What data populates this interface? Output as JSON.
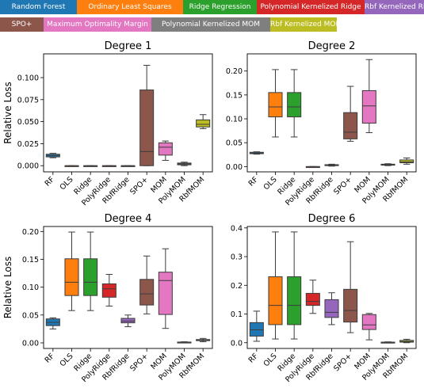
{
  "legend": [
    {
      "label": "Random Forest",
      "color": "#1f77b4"
    },
    {
      "label": "Ordinary Least Squares",
      "color": "#ff7f0e"
    },
    {
      "label": "Ridge Regression",
      "color": "#2ca02c"
    },
    {
      "label": "Polynomial Kernelized Ridge",
      "color": "#d62728"
    },
    {
      "label": "Rbf Kernelized Ridge",
      "color": "#9467bd"
    },
    {
      "label": "SPO+",
      "color": "#8c564b"
    },
    {
      "label": "Maximum Optimality Margin",
      "color": "#e377c2"
    },
    {
      "label": "Polynomial Kernelized MOM",
      "color": "#7f7f7f"
    },
    {
      "label": "Rbf Kernelized MOM",
      "color": "#bcbd22"
    }
  ],
  "chart_data": [
    {
      "type": "box",
      "title": "Degree 1",
      "ylabel": "Relative Loss",
      "ylim": [
        -0.007,
        0.127
      ],
      "yticks": [
        "0.000",
        "0.025",
        "0.050",
        "0.075",
        "0.100"
      ],
      "ytick_values": [
        0,
        0.025,
        0.05,
        0.075,
        0.1
      ],
      "categories": [
        "RF",
        "OLS",
        "Ridge",
        "PolyRidge",
        "RbfRidge",
        "SPO+",
        "MOM",
        "PolyMOM",
        "RbfMOM"
      ],
      "boxes": [
        {
          "whislo": 0.009,
          "q1": 0.01,
          "med": 0.0115,
          "q3": 0.013,
          "whishi": 0.014
        },
        {
          "whislo": 0.0,
          "q1": 0.0,
          "med": 0.0,
          "q3": 0.0,
          "whishi": 0.0
        },
        {
          "whislo": 0.0,
          "q1": 0.0,
          "med": 0.0,
          "q3": 0.0,
          "whishi": 0.0
        },
        {
          "whislo": 0.0,
          "q1": 0.0,
          "med": 0.0,
          "q3": 0.0,
          "whishi": 0.0
        },
        {
          "whislo": 0.0,
          "q1": 0.0,
          "med": 0.0,
          "q3": 0.0,
          "whishi": 0.0
        },
        {
          "whislo": 0.0,
          "q1": 0.0,
          "med": 0.016,
          "q3": 0.086,
          "whishi": 0.114
        },
        {
          "whislo": 0.006,
          "q1": 0.012,
          "med": 0.021,
          "q3": 0.026,
          "whishi": 0.028
        },
        {
          "whislo": 0.0,
          "q1": 0.001,
          "med": 0.002,
          "q3": 0.003,
          "whishi": 0.004
        },
        {
          "whislo": 0.042,
          "q1": 0.044,
          "med": 0.047,
          "q3": 0.052,
          "whishi": 0.058
        }
      ]
    },
    {
      "type": "box",
      "title": "Degree 2",
      "ylabel": "",
      "ylim": [
        -0.011,
        0.236
      ],
      "yticks": [
        "0.00",
        "0.05",
        "0.10",
        "0.15",
        "0.20"
      ],
      "ytick_values": [
        0,
        0.05,
        0.1,
        0.15,
        0.2
      ],
      "categories": [
        "RF",
        "OLS",
        "Ridge",
        "PolyRidge",
        "RbfRidge",
        "SPO+",
        "MOM",
        "PolyMOM",
        "RbfMOM"
      ],
      "boxes": [
        {
          "whislo": 0.026,
          "q1": 0.027,
          "med": 0.028,
          "q3": 0.03,
          "whishi": 0.031
        },
        {
          "whislo": 0.062,
          "q1": 0.104,
          "med": 0.125,
          "q3": 0.155,
          "whishi": 0.203
        },
        {
          "whislo": 0.062,
          "q1": 0.104,
          "med": 0.125,
          "q3": 0.155,
          "whishi": 0.203
        },
        {
          "whislo": 0.0,
          "q1": 0.0,
          "med": 0.0,
          "q3": 0.0,
          "whishi": 0.0
        },
        {
          "whislo": 0.001,
          "q1": 0.002,
          "med": 0.003,
          "q3": 0.004,
          "whishi": 0.005
        },
        {
          "whislo": 0.053,
          "q1": 0.058,
          "med": 0.072,
          "q3": 0.113,
          "whishi": 0.168
        },
        {
          "whislo": 0.071,
          "q1": 0.091,
          "med": 0.127,
          "q3": 0.159,
          "whishi": 0.224
        },
        {
          "whislo": 0.002,
          "q1": 0.003,
          "med": 0.004,
          "q3": 0.005,
          "whishi": 0.006
        },
        {
          "whislo": 0.005,
          "q1": 0.008,
          "med": 0.01,
          "q3": 0.014,
          "whishi": 0.018
        }
      ]
    },
    {
      "type": "box",
      "title": "Degree 4",
      "ylabel": "Relative Loss",
      "ylim": [
        -0.01,
        0.209
      ],
      "yticks": [
        "0.00",
        "0.05",
        "0.10",
        "0.15",
        "0.20"
      ],
      "ytick_values": [
        0,
        0.05,
        0.1,
        0.15,
        0.2
      ],
      "categories": [
        "RF",
        "OLS",
        "Ridge",
        "PolyRidge",
        "RbfRidge",
        "SPO+",
        "MOM",
        "PolyMOM",
        "RbfMOM"
      ],
      "boxes": [
        {
          "whislo": 0.025,
          "q1": 0.031,
          "med": 0.037,
          "q3": 0.043,
          "whishi": 0.045
        },
        {
          "whislo": 0.058,
          "q1": 0.085,
          "med": 0.109,
          "q3": 0.151,
          "whishi": 0.199
        },
        {
          "whislo": 0.058,
          "q1": 0.085,
          "med": 0.109,
          "q3": 0.151,
          "whishi": 0.199
        },
        {
          "whislo": 0.066,
          "q1": 0.082,
          "med": 0.097,
          "q3": 0.106,
          "whishi": 0.123
        },
        {
          "whislo": 0.029,
          "q1": 0.036,
          "med": 0.039,
          "q3": 0.044,
          "whishi": 0.05
        },
        {
          "whislo": 0.052,
          "q1": 0.068,
          "med": 0.088,
          "q3": 0.114,
          "whishi": 0.156
        },
        {
          "whislo": 0.026,
          "q1": 0.051,
          "med": 0.112,
          "q3": 0.127,
          "whishi": 0.169
        },
        {
          "whislo": 0.0,
          "q1": 0.0005,
          "med": 0.001,
          "q3": 0.0015,
          "whishi": 0.002
        },
        {
          "whislo": 0.002,
          "q1": 0.004,
          "med": 0.005,
          "q3": 0.006,
          "whishi": 0.008
        }
      ]
    },
    {
      "type": "box",
      "title": "Degree 6",
      "ylabel": "",
      "ylim": [
        -0.02,
        0.405
      ],
      "yticks": [
        "0.0",
        "0.1",
        "0.2",
        "0.3",
        "0.4"
      ],
      "ytick_values": [
        0,
        0.1,
        0.2,
        0.3,
        0.4
      ],
      "categories": [
        "RF",
        "OLS",
        "Ridge",
        "PolyRidge",
        "RbfRidge",
        "SPO+",
        "MOM",
        "PolyMOM",
        "RbfMOM"
      ],
      "boxes": [
        {
          "whislo": 0.005,
          "q1": 0.023,
          "med": 0.045,
          "q3": 0.07,
          "whishi": 0.11
        },
        {
          "whislo": 0.013,
          "q1": 0.063,
          "med": 0.13,
          "q3": 0.23,
          "whishi": 0.386
        },
        {
          "whislo": 0.013,
          "q1": 0.063,
          "med": 0.13,
          "q3": 0.23,
          "whishi": 0.386
        },
        {
          "whislo": 0.102,
          "q1": 0.13,
          "med": 0.144,
          "q3": 0.172,
          "whishi": 0.218
        },
        {
          "whislo": 0.063,
          "q1": 0.088,
          "med": 0.106,
          "q3": 0.15,
          "whishi": 0.174
        },
        {
          "whislo": 0.035,
          "q1": 0.072,
          "med": 0.112,
          "q3": 0.186,
          "whishi": 0.352
        },
        {
          "whislo": 0.01,
          "q1": 0.046,
          "med": 0.062,
          "q3": 0.098,
          "whishi": 0.102
        },
        {
          "whislo": 0.0,
          "q1": 0.0005,
          "med": 0.001,
          "q3": 0.002,
          "whishi": 0.003
        },
        {
          "whislo": 0.0,
          "q1": 0.002,
          "med": 0.004,
          "q3": 0.008,
          "whishi": 0.012
        }
      ]
    }
  ]
}
